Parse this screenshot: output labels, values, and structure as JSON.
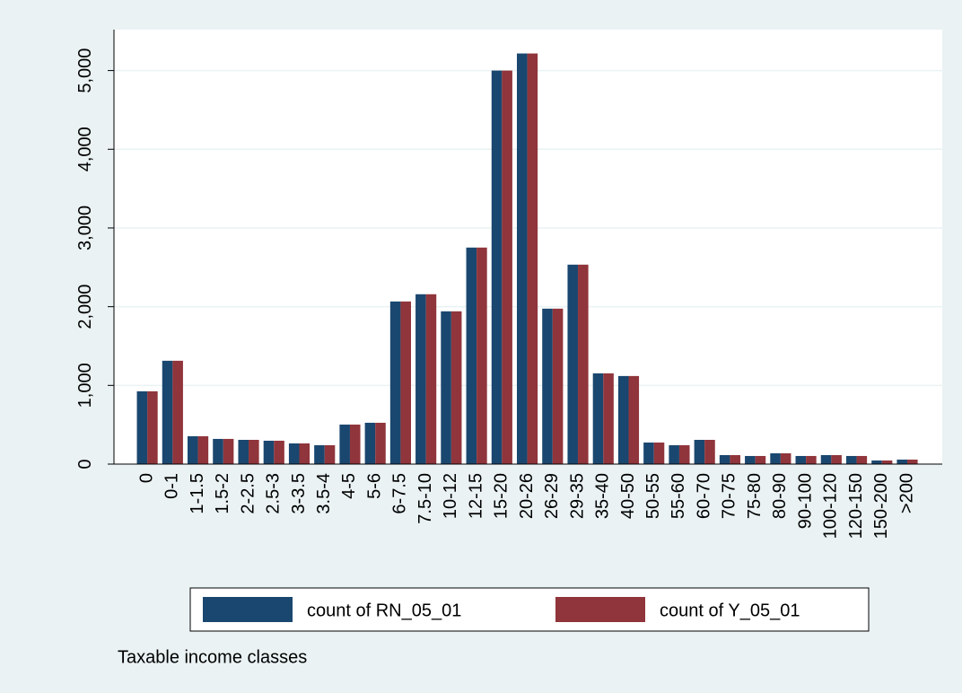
{
  "chart_data": {
    "type": "bar",
    "x_label": "Taxable income classes",
    "categories": [
      "0",
      "0-1",
      "1-1.5",
      "1.5-2",
      "2-2.5",
      "2.5-3",
      "3-3.5",
      "3.5-4",
      "4-5",
      "5-6",
      "6-7.5",
      "7.5-10",
      "10-12",
      "12-15",
      "15-20",
      "20-26",
      "26-29",
      "29-35",
      "35-40",
      "40-50",
      "50-55",
      "55-60",
      "60-70",
      "70-75",
      "75-80",
      "80-90",
      "90-100",
      "100-120",
      "120-150",
      "150-200",
      ">200"
    ],
    "series": [
      {
        "name": "count of RN_05_01",
        "color": "#1a476f",
        "values": [
          925,
          1313,
          354,
          320,
          308,
          297,
          263,
          240,
          502,
          525,
          2066,
          2158,
          1941,
          2751,
          5000,
          5217,
          1975,
          2534,
          1153,
          1119,
          274,
          240,
          308,
          114,
          103,
          137,
          103,
          114,
          103,
          46,
          57
        ]
      },
      {
        "name": "count of Y_05_01",
        "color": "#90353b",
        "values": [
          925,
          1313,
          354,
          320,
          308,
          297,
          263,
          240,
          502,
          525,
          2066,
          2158,
          1941,
          2751,
          5000,
          5217,
          1975,
          2534,
          1153,
          1119,
          274,
          240,
          308,
          114,
          103,
          137,
          103,
          114,
          103,
          46,
          57
        ]
      }
    ],
    "ylim": [
      0,
      5520
    ],
    "yticks": [
      0,
      {
        "value": 1000,
        "label": "1,000"
      },
      {
        "value": 2000,
        "label": "2,000"
      },
      {
        "value": 3000,
        "label": "3,000"
      },
      {
        "value": 4000,
        "label": "4,000"
      },
      {
        "value": 5000,
        "label": "5,000"
      }
    ],
    "grid": true
  }
}
